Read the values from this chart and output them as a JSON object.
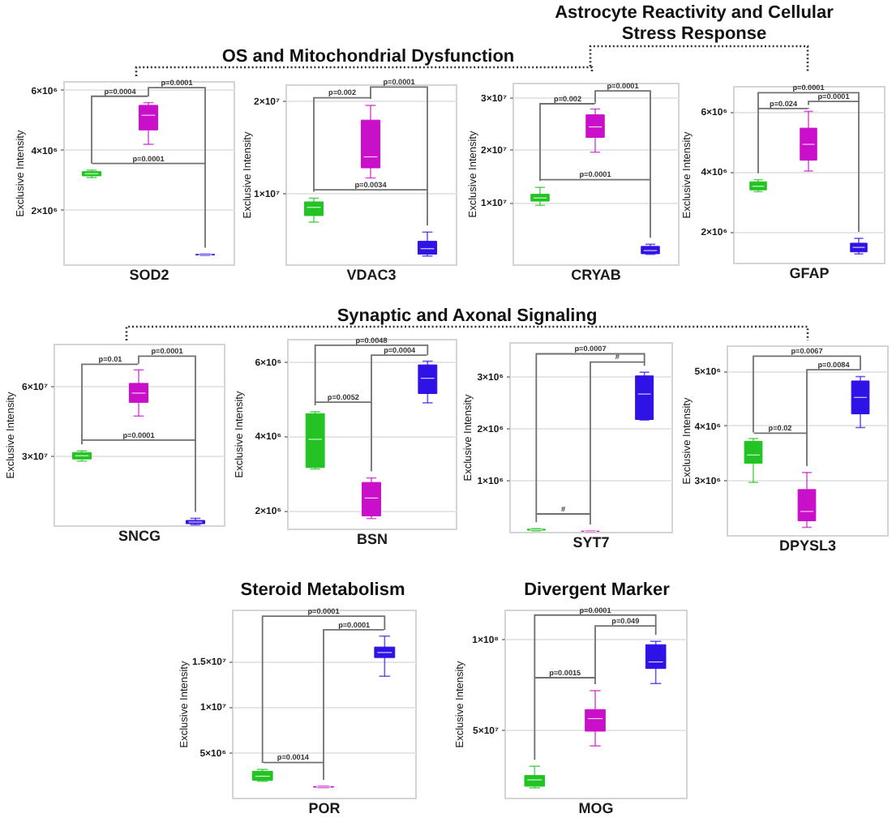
{
  "chart_data": [
    {
      "type": "box",
      "xlabel": "SOD2",
      "ylabel": "Exclusive Intensity",
      "categories": [
        null,
        null,
        null
      ],
      "colors": [
        "#22c322",
        "#c90fc9",
        "#2f12e6"
      ],
      "boxes": [
        {
          "low": 3070000,
          "q1": 3130000,
          "median": 3200000,
          "q3": 3270000,
          "high": 3320000
        },
        {
          "low": 4180000,
          "q1": 4660000,
          "median": 5150000,
          "q3": 5480000,
          "high": 5570000
        },
        {
          "low": 480000,
          "q1": 490000,
          "median": 500000,
          "q3": 510000,
          "high": 520000
        }
      ],
      "ylim": [
        180000,
        6290000
      ],
      "yticks": [
        {
          "value": 2000000,
          "label": "2×10⁶"
        },
        {
          "value": 4000000,
          "label": "4×10⁶"
        },
        {
          "value": 6000000,
          "label": "6×10⁶"
        }
      ],
      "grid": "y",
      "annotations": [
        "p=0.0004",
        "p=0.0001",
        "p=0.0001"
      ]
    },
    {
      "type": "box",
      "title": "OS and Mitochondrial Dysfunction",
      "xlabel": "VDAC3",
      "ylabel": "Exclusive Intensity",
      "categories": [
        null,
        null,
        null
      ],
      "colors": [
        "#22c322",
        "#c90fc9",
        "#2f12e6"
      ],
      "boxes": [
        {
          "low": 6800000,
          "q1": 7500000,
          "median": 8400000,
          "q3": 9000000,
          "high": 9400000
        },
        {
          "low": 11600000,
          "q1": 12700000,
          "median": 13900000,
          "q3": 17900000,
          "high": 19500000
        },
        {
          "low": 3100000,
          "q1": 3300000,
          "median": 3900000,
          "q3": 4700000,
          "high": 5700000
        }
      ],
      "ylim": [
        2200000,
        21800000
      ],
      "yticks": [
        {
          "value": 10000000,
          "label": "1×10⁷"
        },
        {
          "value": 20000000,
          "label": "2×10⁷"
        }
      ],
      "grid": "y",
      "annotations": [
        "p=0.002",
        "p=0.0001",
        "p=0.0034"
      ]
    },
    {
      "type": "box",
      "xlabel": "CRYAB",
      "ylabel": "Exclusive Intensity",
      "categories": [
        null,
        null,
        null
      ],
      "colors": [
        "#22c322",
        "#c90fc9",
        "#2f12e6"
      ],
      "boxes": [
        {
          "low": 9400000,
          "q1": 10200000,
          "median": 10800000,
          "q3": 11500000,
          "high": 12800000
        },
        {
          "low": 19500000,
          "q1": 22300000,
          "median": 24300000,
          "q3": 26600000,
          "high": 27700000
        },
        {
          "low": 100000,
          "q1": 200000,
          "median": 800000,
          "q3": 1600000,
          "high": 2000000
        }
      ],
      "ylim": [
        -1800000,
        32700000
      ],
      "yticks": [
        {
          "value": 10000000,
          "label": "1×10⁷"
        },
        {
          "value": 20000000,
          "label": "2×10⁷"
        },
        {
          "value": 30000000,
          "label": "3×10⁷"
        }
      ],
      "grid": "y",
      "annotations": [
        "p=0.002",
        "p=0.0001",
        "p=0.0001"
      ]
    },
    {
      "type": "box",
      "title": "Astrocyte Reactivity and Cellular Stress Response",
      "xlabel": "GFAP",
      "ylabel": "Exclusive Intensity",
      "categories": [
        null,
        null,
        null
      ],
      "colors": [
        "#22c322",
        "#c90fc9",
        "#2f12e6"
      ],
      "boxes": [
        {
          "low": 3320000,
          "q1": 3380000,
          "median": 3500000,
          "q3": 3650000,
          "high": 3720000
        },
        {
          "low": 4010000,
          "q1": 4370000,
          "median": 4900000,
          "q3": 5440000,
          "high": 6000000
        },
        {
          "low": 1240000,
          "q1": 1310000,
          "median": 1460000,
          "q3": 1600000,
          "high": 1760000
        }
      ],
      "ylim": [
        950000,
        6850000
      ],
      "yticks": [
        {
          "value": 2000000,
          "label": "2×10⁶"
        },
        {
          "value": 4000000,
          "label": "4×10⁶"
        },
        {
          "value": 6000000,
          "label": "6×10⁶"
        }
      ],
      "grid": "y",
      "annotations": [
        "p=0.0001",
        "p=0.024",
        "p=0.0001"
      ]
    },
    {
      "type": "box",
      "xlabel": "SNCG",
      "ylabel": "Exclusive Intensity",
      "categories": [
        null,
        null,
        null
      ],
      "colors": [
        "#22c322",
        "#c90fc9",
        "#2f12e6"
      ],
      "boxes": [
        {
          "low": 27700000,
          "q1": 28600000,
          "median": 30000000,
          "q3": 31400000,
          "high": 32100000
        },
        {
          "low": 47100000,
          "q1": 53000000,
          "median": 57000000,
          "q3": 61200000,
          "high": 67000000
        },
        {
          "low": 200000,
          "q1": 700000,
          "median": 1400000,
          "q3": 2100000,
          "high": 3000000
        }
      ],
      "ylim": [
        0,
        78300000
      ],
      "yticks": [
        {
          "value": 30000000,
          "label": "3×10⁷"
        },
        {
          "value": 60000000,
          "label": "6×10⁷"
        }
      ],
      "grid": "y",
      "annotations": [
        "p=0.01",
        "p=0.0001",
        "p=0.0001"
      ]
    },
    {
      "type": "box",
      "title": "Synaptic and Axonal Signaling",
      "xlabel": "BSN",
      "ylabel": "Exclusive Intensity",
      "categories": [
        null,
        null,
        null
      ],
      "colors": [
        "#22c322",
        "#c90fc9",
        "#2f12e6"
      ],
      "boxes": [
        {
          "low": 3100000,
          "q1": 3140000,
          "median": 3900000,
          "q3": 4590000,
          "high": 4640000
        },
        {
          "low": 1770000,
          "q1": 1840000,
          "median": 2320000,
          "q3": 2740000,
          "high": 2860000
        },
        {
          "low": 4880000,
          "q1": 5130000,
          "median": 5540000,
          "q3": 5900000,
          "high": 6000000
        }
      ],
      "ylim": [
        1500000,
        6600000
      ],
      "yticks": [
        {
          "value": 2000000,
          "label": "2×10⁶"
        },
        {
          "value": 4000000,
          "label": "4×10⁶"
        },
        {
          "value": 6000000,
          "label": "6×10⁶"
        }
      ],
      "grid": "y",
      "annotations": [
        "p=0.0048",
        "p=0.0004",
        "p=0.0052"
      ]
    },
    {
      "type": "box",
      "xlabel": "SYT7",
      "ylabel": "Exclusive Intensity",
      "categories": [
        null,
        null,
        null
      ],
      "colors": [
        "#22c322",
        "#c90fc9",
        "#2f12e6"
      ],
      "boxes": [
        {
          "low": 20000,
          "q1": 30000,
          "median": 40000,
          "q3": 50000,
          "high": 60000
        },
        {
          "low": 5000,
          "q1": 8000,
          "median": 10000,
          "q3": 12000,
          "high": 15000
        },
        {
          "low": 2150000,
          "q1": 2160000,
          "median": 2650000,
          "q3": 3000000,
          "high": 3070000
        }
      ],
      "ylim": [
        0,
        3650000
      ],
      "yticks": [
        {
          "value": 1000000,
          "label": "1×10⁶"
        },
        {
          "value": 2000000,
          "label": "2×10⁶"
        },
        {
          "value": 3000000,
          "label": "3×10⁶"
        }
      ],
      "grid": "y",
      "annotations": [
        "p=0.0007",
        "#",
        "#"
      ]
    },
    {
      "type": "box",
      "xlabel": "DPYSL3",
      "ylabel": "Exclusive Intensity",
      "categories": [
        null,
        null,
        null
      ],
      "colors": [
        "#22c322",
        "#c90fc9",
        "#2f12e6"
      ],
      "boxes": [
        {
          "low": 2960000,
          "q1": 3310000,
          "median": 3460000,
          "q3": 3710000,
          "high": 3760000
        },
        {
          "low": 2140000,
          "q1": 2260000,
          "median": 2430000,
          "q3": 2830000,
          "high": 3140000
        },
        {
          "low": 3960000,
          "q1": 4210000,
          "median": 4510000,
          "q3": 4810000,
          "high": 4890000
        }
      ],
      "ylim": [
        2000000,
        5460000
      ],
      "yticks": [
        {
          "value": 3000000,
          "label": "3×10⁶"
        },
        {
          "value": 4000000,
          "label": "4×10⁶"
        },
        {
          "value": 5000000,
          "label": "5×10⁶"
        }
      ],
      "grid": "y",
      "annotations": [
        "p=0.0067",
        "p=0.0084",
        "p=0.02"
      ]
    },
    {
      "type": "box",
      "title": "Steroid Metabolism",
      "xlabel": "POR",
      "ylabel": "Exclusive Intensity",
      "categories": [
        null,
        null,
        null
      ],
      "colors": [
        "#22c322",
        "#c90fc9",
        "#2f12e6"
      ],
      "boxes": [
        {
          "low": 1800000,
          "q1": 1900000,
          "median": 2350000,
          "q3": 2900000,
          "high": 3100000
        },
        {
          "low": 1100000,
          "q1": 1150000,
          "median": 1180000,
          "q3": 1220000,
          "high": 1250000
        },
        {
          "low": 13300000,
          "q1": 15350000,
          "median": 15900000,
          "q3": 16500000,
          "high": 17700000
        }
      ],
      "ylim": [
        0,
        20600000
      ],
      "yticks": [
        {
          "value": 5000000,
          "label": "5×10⁶"
        },
        {
          "value": 10000000,
          "label": "1×10⁷"
        },
        {
          "value": 15000000,
          "label": "1.5×10⁷"
        }
      ],
      "grid": "y",
      "annotations": [
        "p=0.0001",
        "p=0.0001",
        "p=0.0014"
      ]
    },
    {
      "type": "box",
      "title": "Divergent Marker",
      "xlabel": "MOG",
      "ylabel": "Exclusive Intensity",
      "categories": [
        null,
        null,
        null
      ],
      "colors": [
        "#22c322",
        "#c90fc9",
        "#2f12e6"
      ],
      "boxes": [
        {
          "low": 17900000,
          "q1": 18800000,
          "median": 22300000,
          "q3": 24700000,
          "high": 29800000
        },
        {
          "low": 41000000,
          "q1": 49100000,
          "median": 56000000,
          "q3": 61000000,
          "high": 71400000
        },
        {
          "low": 75300000,
          "q1": 83600000,
          "median": 87200000,
          "q3": 96700000,
          "high": 98500000
        }
      ],
      "ylim": [
        12500000,
        116000000
      ],
      "yticks": [
        {
          "value": 50000000,
          "label": "5×10⁷"
        },
        {
          "value": 100000000,
          "label": "1×10⁸"
        }
      ],
      "grid": "y",
      "annotations": [
        "p=0.0001",
        "p=0.049",
        "p=0.0015"
      ]
    }
  ]
}
